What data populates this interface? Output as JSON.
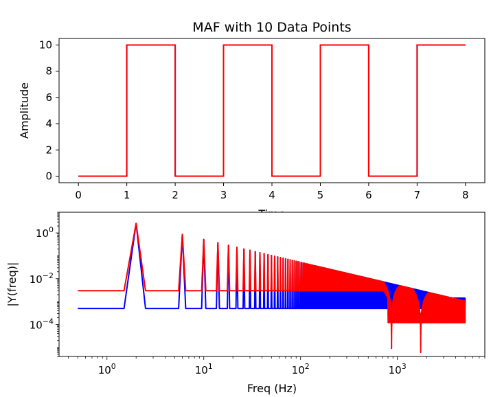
{
  "chart_data": [
    {
      "type": "line",
      "title": "MAF with 10 Data Points",
      "xlabel": "Time",
      "ylabel": "Amplitude",
      "xlim": [
        -0.4,
        8.4
      ],
      "ylim": [
        -0.5,
        10.5
      ],
      "xticks": [
        "0",
        "1",
        "2",
        "3",
        "4",
        "5",
        "6",
        "7",
        "8"
      ],
      "yticks": [
        "0",
        "2",
        "4",
        "6",
        "8",
        "10"
      ],
      "grid": false,
      "series": [
        {
          "color": "#0000ff",
          "x": [
            0,
            1,
            1,
            2,
            2,
            3,
            3,
            4,
            4,
            5,
            5,
            6,
            6,
            7,
            7,
            8
          ],
          "y": [
            0,
            0,
            10,
            10,
            0,
            0,
            10,
            10,
            0,
            0,
            10,
            10,
            0,
            0,
            10,
            10
          ]
        },
        {
          "color": "#ff0000",
          "x": [
            0,
            1,
            1,
            2,
            2,
            3,
            3,
            4,
            4,
            5,
            5,
            6,
            6,
            7,
            7,
            8
          ],
          "y": [
            0,
            0,
            10,
            10,
            0,
            0,
            10,
            10,
            0,
            0,
            10,
            10,
            0,
            0,
            10,
            10
          ]
        }
      ]
    },
    {
      "type": "line",
      "title": "",
      "xlabel": "Freq (Hz)",
      "ylabel": "|Y(freq)|",
      "xscale": "log",
      "yscale": "log",
      "xlim": [
        0.32,
        8000
      ],
      "ylim": [
        4e-06,
        8
      ],
      "xticks": [
        {
          "value": 1,
          "base": "10",
          "exp": "0"
        },
        {
          "value": 10,
          "base": "10",
          "exp": "1"
        },
        {
          "value": 100,
          "base": "10",
          "exp": "2"
        },
        {
          "value": 1000,
          "base": "10",
          "exp": "3"
        }
      ],
      "yticks": [
        {
          "value": 1,
          "base": "10",
          "exp": "0"
        },
        {
          "value": 0.01,
          "base": "10",
          "exp": "−2"
        },
        {
          "value": 0.0001,
          "base": "10",
          "exp": "−4"
        }
      ],
      "grid": false,
      "series": [
        {
          "color": "#0000ff",
          "fundamental_hz": 2,
          "peak_amplitude": 2.6,
          "floor": 0.0005,
          "x_max_hz": 5000,
          "upper_envelope_end": 0.0014
        },
        {
          "color": "#ff0000",
          "fundamental_hz": 2,
          "peak_amplitude": 2.6,
          "floor": 0.003,
          "x_max_hz": 5000,
          "notch_hz": [
            870,
            1740
          ],
          "notch_depth": 6e-06,
          "tail_level": 0.0003
        }
      ]
    }
  ]
}
